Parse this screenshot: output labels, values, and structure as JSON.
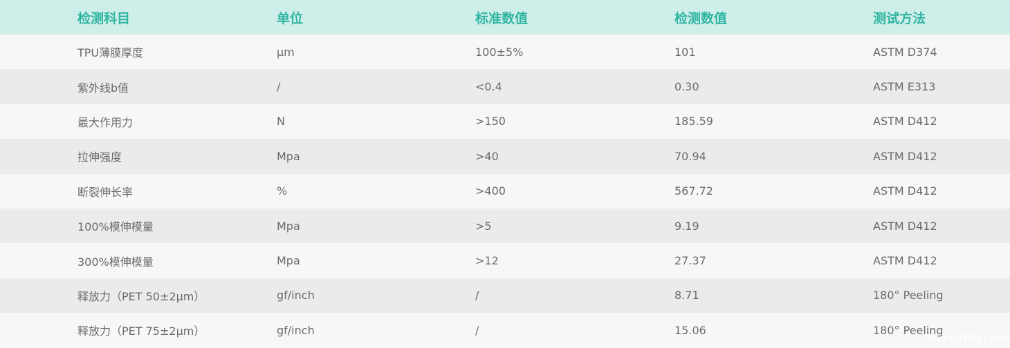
{
  "headers": [
    "检测科目",
    "单位",
    "标准数值",
    "检测数值",
    "测试方法"
  ],
  "rows": [
    [
      "TPU薄膜厚度",
      "µm",
      "100±5%",
      "101",
      "ASTM D374"
    ],
    [
      "紫外线b值",
      "/",
      "<0.4",
      "0.30",
      "ASTM E313"
    ],
    [
      "最大作用力",
      "N",
      ">150",
      "185.59",
      "ASTM D412"
    ],
    [
      "拉伸强度",
      "Mpa",
      ">40",
      "70.94",
      "ASTM D412"
    ],
    [
      "断裂伸长率",
      "%",
      ">400",
      "567.72",
      "ASTM D412"
    ],
    [
      "100%模伸模量",
      "Mpa",
      ">5",
      "9.19",
      "ASTM D412"
    ],
    [
      "300%模伸模量",
      "Mpa",
      ">12",
      "27.37",
      "ASTM D412"
    ],
    [
      "释放力（PET 50±2µm）",
      "gf/inch",
      "/",
      "8.71",
      "180° Peeling"
    ],
    [
      "释放力（PET 75±2µm）",
      "gf/inch",
      "/",
      "15.06",
      "180° Peeling"
    ]
  ],
  "watermark": "m.sculbg.com",
  "colors": {
    "header_bg": "#ceeeea",
    "header_text": "#2fb5a1",
    "row_odd": "#f7f7f7",
    "row_even": "#ebebeb",
    "cell_text": "#6b6b6b"
  }
}
